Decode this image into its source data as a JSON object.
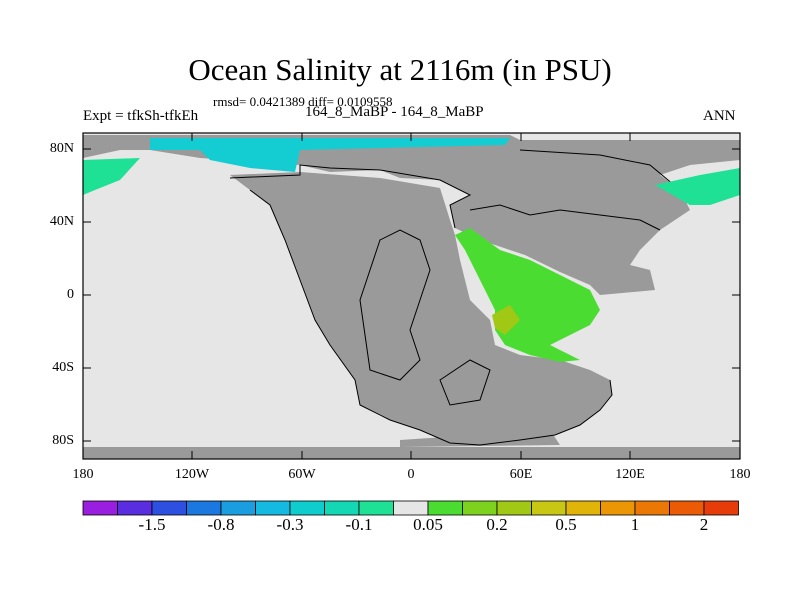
{
  "title": "Ocean Salinity at 2116m (in PSU)",
  "stats": "rmsd= 0.0421389 diff= 0.0109558",
  "experiment": "Expt = tfkSh-tfkEh",
  "subtitle": "164_8_MaBP - 164_8_MaBP",
  "season": "ANN",
  "map": {
    "latitude_labels": [
      "80N",
      "40N",
      "0",
      "40S",
      "80S"
    ],
    "longitude_labels": [
      "180",
      "120W",
      "60W",
      "0",
      "60E",
      "120E",
      "180"
    ],
    "colors": {
      "land": "#9a9a9a",
      "ocean_neutral": "#e6e6e6"
    }
  },
  "colorbar": {
    "labels": [
      "-1.5",
      "-0.8",
      "-0.3",
      "-0.1",
      "0.05",
      "0.2",
      "0.5",
      "1",
      "2"
    ],
    "colors": [
      "#9a1ee0",
      "#5a2de0",
      "#2d50e0",
      "#1a78e0",
      "#1a9ee0",
      "#14bae0",
      "#0fcdcd",
      "#14d7b4",
      "#1ee196",
      "#e6e6e6",
      "#4bdc32",
      "#7dd21e",
      "#a0c814",
      "#c8c814",
      "#e1b40a",
      "#eb9605",
      "#eb7805",
      "#eb5a05",
      "#e63c0a"
    ]
  }
}
